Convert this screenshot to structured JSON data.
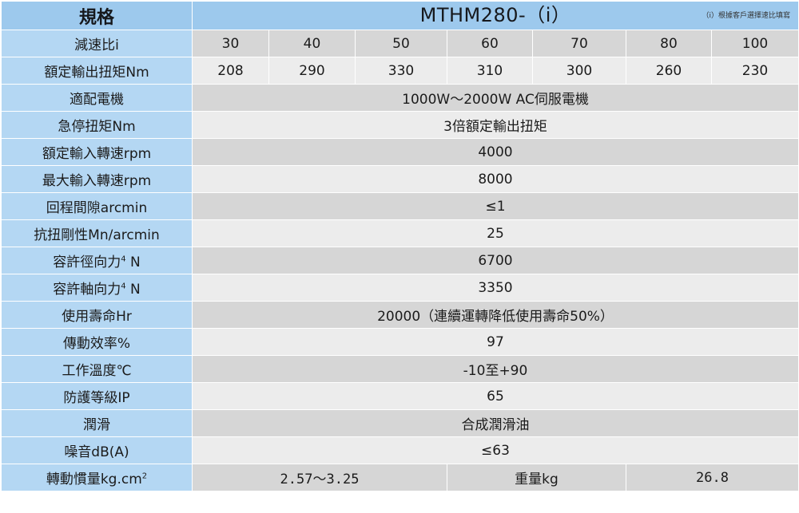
{
  "header": {
    "spec_label": "規格",
    "model": "MTHM280-（i）",
    "note": "（i）根據客戶選擇速比填寫"
  },
  "ratio": {
    "label": "減速比i",
    "values": [
      "30",
      "40",
      "50",
      "60",
      "70",
      "80",
      "100"
    ]
  },
  "torque": {
    "label": "額定輸出扭矩Nm",
    "values": [
      "208",
      "290",
      "330",
      "310",
      "300",
      "260",
      "230"
    ]
  },
  "rows": [
    {
      "label": "適配電機",
      "value": "1000W～2000W AC伺服電機"
    },
    {
      "label": "急停扭矩Nm",
      "value": "3倍額定輸出扭矩"
    },
    {
      "label": "額定輸入轉速rpm",
      "value": "4000"
    },
    {
      "label": "最大輸入轉速rpm",
      "value": "8000"
    },
    {
      "label": "回程間隙arcmin",
      "value": "≤1"
    },
    {
      "label": "抗扭剛性Mn/arcmin",
      "value": "25"
    },
    {
      "label_main": "容許徑向力",
      "label_sup": "4",
      "label_end": " N",
      "value": "6700"
    },
    {
      "label_main": "容許軸向力",
      "label_sup": "4",
      "label_end": " N",
      "value": "3350"
    },
    {
      "label": "使用壽命Hr",
      "value": "20000（連續運轉降低使用壽命50%）"
    },
    {
      "label": "傳動效率%",
      "value": "97"
    },
    {
      "label": "工作溫度℃",
      "value": "-10至+90"
    },
    {
      "label": "防護等級IP",
      "value": "65"
    },
    {
      "label": "潤滑",
      "value": "合成潤滑油"
    },
    {
      "label": "噪音dB(A)",
      "value": "≤63"
    }
  ],
  "inertia": {
    "label_main": "轉動慣量kg.cm",
    "label_sup": "2",
    "value": "2.57～3.25",
    "weight_label": "重量kg",
    "weight_value": "26.8"
  }
}
